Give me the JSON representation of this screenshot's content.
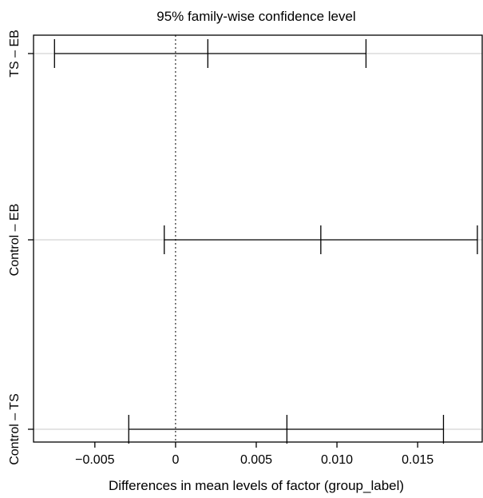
{
  "chart_data": {
    "type": "interval",
    "title": "95% family-wise confidence level",
    "xlabel": "Differences in mean levels of factor (group_label)",
    "ylabel": "",
    "xlim": [
      -0.0088,
      0.019
    ],
    "x_ticks": [
      -0.005,
      0,
      0.005,
      0.01,
      0.015
    ],
    "x_tick_labels": [
      "−0.005",
      "0",
      "0.005",
      "0.010",
      "0.015"
    ],
    "zero_line": {
      "x": 0,
      "style": "dotted"
    },
    "horizontal_gridlines": true,
    "comparisons": [
      {
        "label": "TS – EB",
        "lwr": -0.0075,
        "diff": 0.002,
        "upr": 0.0118
      },
      {
        "label": "Control – EB",
        "lwr": -0.0007,
        "diff": 0.009,
        "upr": 0.0187
      },
      {
        "label": "Control – TS",
        "lwr": -0.0029,
        "diff": 0.0069,
        "upr": 0.0166
      }
    ]
  }
}
